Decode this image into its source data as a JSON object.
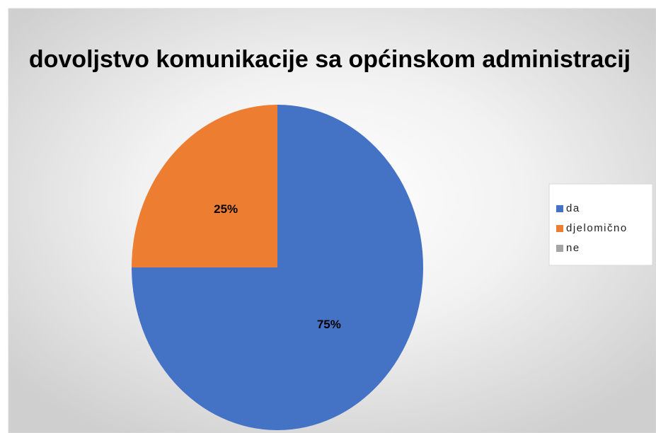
{
  "chart_data": {
    "type": "pie",
    "title": "dovoljstvo komunikacije sa općinskom administracij",
    "categories": [
      "da",
      "djelomično",
      "ne"
    ],
    "values": [
      75,
      25,
      0
    ],
    "value_labels": [
      "75%",
      "25%",
      null
    ],
    "colors": [
      "#4472c4",
      "#ed7d31",
      "#a5a5a5"
    ],
    "legend": "right"
  }
}
